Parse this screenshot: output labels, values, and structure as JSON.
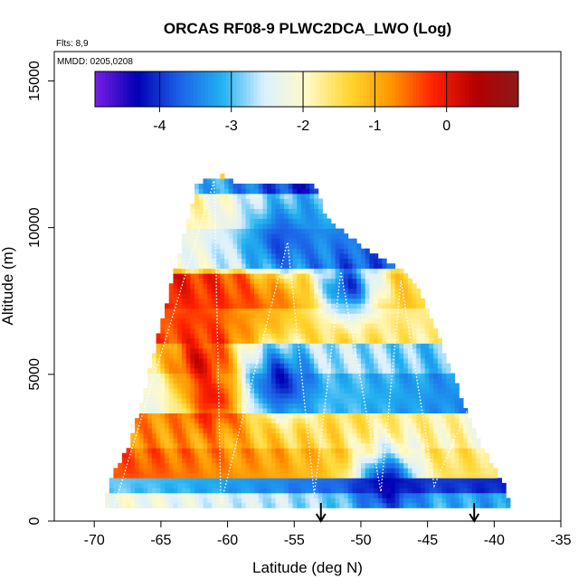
{
  "chart_data": {
    "type": "heatmap",
    "title": "ORCAS RF08-9 PLWC2DCA_LWO (Log)",
    "xlabel": "Latitude (deg N)",
    "ylabel": "Altitude (m)",
    "xlim": [
      -73,
      -35
    ],
    "ylim": [
      0,
      16000
    ],
    "x_ticks": [
      -70,
      -65,
      -60,
      -55,
      -50,
      -45,
      -40,
      -35
    ],
    "y_ticks": [
      0,
      5000,
      10000,
      15000
    ],
    "annotations": {
      "flights": "Flts: 8,9",
      "dates": "MMDD: 0205,0208"
    },
    "colorbar": {
      "range": [
        -4.9,
        1.0
      ],
      "ticks": [
        -4,
        -3,
        -2,
        -1,
        0
      ],
      "colors": [
        "#7a1ee6",
        "#0000b4",
        "#1c62e8",
        "#21b0f0",
        "#dcf0ff",
        "#fffac8",
        "#ffd730",
        "#ff9600",
        "#ff2000",
        "#b40000",
        "#8c1a1a"
      ]
    },
    "coverage_envelope": [
      [
        -69.2,
        450
      ],
      [
        -68.8,
        1400
      ],
      [
        -67.5,
        2400
      ],
      [
        -66.5,
        3900
      ],
      [
        -65.5,
        5700
      ],
      [
        -64.5,
        7500
      ],
      [
        -63.3,
        9600
      ],
      [
        -62.3,
        11400
      ],
      [
        -60.5,
        11700
      ],
      [
        -59.5,
        11500
      ],
      [
        -53.5,
        11400
      ],
      [
        -52.5,
        10200
      ],
      [
        -49.0,
        9000
      ],
      [
        -46.8,
        8400
      ],
      [
        -45.5,
        7700
      ],
      [
        -44.0,
        6000
      ],
      [
        -42.5,
        4200
      ],
      [
        -41.0,
        2500
      ],
      [
        -39.3,
        1200
      ],
      [
        -38.8,
        500
      ]
    ],
    "layers": [
      {
        "alt": [
          11200,
          11700
        ],
        "lat": [
          -62.3,
          -53.5
        ],
        "value": -3.6
      },
      {
        "alt": [
          10000,
          11200
        ],
        "lat": [
          -61.5,
          -52.5
        ],
        "value": -2.6
      },
      {
        "alt": [
          8600,
          10000
        ],
        "lat": [
          -60.5,
          -49.0
        ],
        "value": -3.1
      },
      {
        "alt": [
          7300,
          8400
        ],
        "lat": [
          -64.5,
          -46.8
        ],
        "value": -0.6
      },
      {
        "alt": [
          6100,
          7300
        ],
        "lat": [
          -65.0,
          -45.5
        ],
        "value": -1.1
      },
      {
        "alt": [
          5000,
          6100
        ],
        "lat": [
          -65.5,
          -44.0
        ],
        "value": -2.4
      },
      {
        "alt": [
          3700,
          5000
        ],
        "lat": [
          -66.5,
          -43.0
        ],
        "value": -2.8
      },
      {
        "alt": [
          2500,
          3700
        ],
        "lat": [
          -67.0,
          -41.5
        ],
        "value": -1.3
      },
      {
        "alt": [
          1500,
          2500
        ],
        "lat": [
          -68.0,
          -40.2
        ],
        "value": -1.0
      },
      {
        "alt": [
          900,
          1500
        ],
        "lat": [
          -68.5,
          -39.3
        ],
        "value": -3.5
      },
      {
        "alt": [
          450,
          900
        ],
        "lat": [
          -69.2,
          -38.8
        ],
        "value": -2.7
      }
    ],
    "hotspots": [
      {
        "lat": -62.0,
        "alt": 5500,
        "value": 0.2
      },
      {
        "lat": -61.0,
        "alt": 4200,
        "value": 0.0
      },
      {
        "lat": -62.5,
        "alt": 6800,
        "value": -0.3
      },
      {
        "lat": -51.0,
        "alt": 8000,
        "value": -3.9
      },
      {
        "lat": -56.0,
        "alt": 4800,
        "value": -4.1
      },
      {
        "lat": -48.0,
        "alt": 1300,
        "value": -4.3
      },
      {
        "lat": -56.0,
        "alt": 9600,
        "value": -3.8
      }
    ],
    "flight_track": [
      [
        -68.5,
        500
      ],
      [
        -61.0,
        11600
      ],
      [
        -60.5,
        600
      ],
      [
        -55.5,
        9500
      ],
      [
        -53.5,
        900
      ],
      [
        -51.5,
        8500
      ],
      [
        -48.5,
        1000
      ],
      [
        -47.0,
        8200
      ],
      [
        -44.5,
        1200
      ],
      [
        -42.0,
        3800
      ]
    ],
    "arrows_lat": [
      -53.0,
      -41.5
    ]
  }
}
